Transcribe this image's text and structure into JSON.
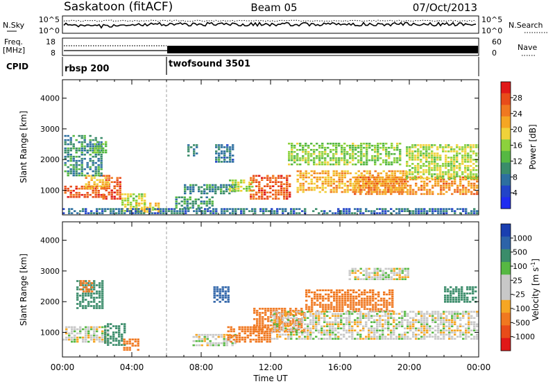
{
  "header": {
    "station": "Saskatoon (fitACF)",
    "beam": "Beam 05",
    "date": "07/Oct/2013"
  },
  "noise_panel": {
    "left_label": "N.Sky",
    "right_label": "N.Search",
    "left_ticks": [
      "10^5",
      "10^0"
    ],
    "right_ticks": [
      "10^5",
      "10^0"
    ]
  },
  "freq_panel": {
    "left_label_line1": "Freq.",
    "left_label_line2": "[MHz]",
    "right_label": "Nave",
    "left_ticks": [
      "18",
      "8"
    ],
    "right_ticks": [
      "60",
      "0"
    ]
  },
  "cpid_panel": {
    "label": "CPID",
    "modes": [
      {
        "name": "rbsp 200",
        "start_hour": 0
      },
      {
        "name": "twofsound 3501",
        "start_hour": 6
      }
    ]
  },
  "chart_data": [
    {
      "type": "heatmap",
      "title": "",
      "xlabel": "",
      "ylabel": "Slant Range [km]",
      "xlim": [
        0,
        24
      ],
      "ylim": [
        200,
        4600
      ],
      "y_ticks": [
        1000,
        2000,
        3000,
        4000
      ],
      "colorbar_label": "Power [dB]",
      "colorbar_ticks": [
        "4",
        "8",
        "12",
        "16",
        "20",
        "24",
        "28"
      ],
      "colorbar_colors": [
        "#1f2bf0",
        "#2244c8",
        "#2d6fa0",
        "#3a8c6a",
        "#56b843",
        "#8cd13c",
        "#f0d23a",
        "#f5a623",
        "#f07820",
        "#e84c1a",
        "#e01818"
      ],
      "regions": [
        {
          "x0": 0.1,
          "x1": 2.4,
          "y0": 800,
          "y1": 1150,
          "v": 26
        },
        {
          "x0": 2.3,
          "x1": 3.4,
          "y0": 750,
          "y1": 1500,
          "v": 26
        },
        {
          "x0": 1.3,
          "x1": 2.6,
          "y0": 1050,
          "y1": 1500,
          "v": 20
        },
        {
          "x0": 3.4,
          "x1": 4.8,
          "y0": 350,
          "y1": 900,
          "v": 16
        },
        {
          "x0": 4.2,
          "x1": 5.6,
          "y0": 300,
          "y1": 600,
          "v": 18
        },
        {
          "x0": 0.1,
          "x1": 2.2,
          "y0": 1500,
          "y1": 2800,
          "v": 9
        },
        {
          "x0": 1.8,
          "x1": 2.5,
          "y0": 2200,
          "y1": 2600,
          "v": 14
        },
        {
          "x0": 6.5,
          "x1": 8.6,
          "y0": 400,
          "y1": 800,
          "v": 10
        },
        {
          "x0": 7.0,
          "x1": 10.0,
          "y0": 900,
          "y1": 1200,
          "v": 9
        },
        {
          "x0": 8.8,
          "x1": 9.8,
          "y0": 1950,
          "y1": 2500,
          "v": 8
        },
        {
          "x0": 7.2,
          "x1": 7.8,
          "y0": 2100,
          "y1": 2500,
          "v": 8
        },
        {
          "x0": 9.6,
          "x1": 11.0,
          "y0": 950,
          "y1": 1350,
          "v": 16
        },
        {
          "x0": 10.8,
          "x1": 13.2,
          "y0": 700,
          "y1": 1500,
          "v": 25
        },
        {
          "x0": 13.0,
          "x1": 19.5,
          "y0": 1850,
          "y1": 2550,
          "v": 14
        },
        {
          "x0": 13.5,
          "x1": 19.8,
          "y0": 950,
          "y1": 1650,
          "v": 20
        },
        {
          "x0": 16.8,
          "x1": 24,
          "y0": 900,
          "y1": 1450,
          "v": 22
        },
        {
          "x0": 19.8,
          "x1": 24,
          "y0": 1350,
          "y1": 2500,
          "v": 16
        },
        {
          "x0": 0,
          "x1": 24,
          "y0": 230,
          "y1": 420,
          "v": 7
        }
      ]
    },
    {
      "type": "heatmap",
      "title": "",
      "xlabel": "Time UT",
      "ylabel": "Slant Range [km]",
      "xlim": [
        0,
        24
      ],
      "ylim": [
        200,
        4600
      ],
      "x_ticks": [
        "00:00",
        "04:00",
        "08:00",
        "12:00",
        "16:00",
        "20:00",
        "00:00"
      ],
      "y_ticks": [
        1000,
        2000,
        3000,
        4000
      ],
      "colorbar_label": "Velocity [m s^-1]",
      "colorbar_label_base": "Velocity [m s",
      "colorbar_label_sup": "-1",
      "colorbar_label_end": "]",
      "colorbar_ticks": [
        "1000",
        "500",
        "100",
        "25",
        "-25",
        "-100",
        "-500",
        "-1000"
      ],
      "colorbar_colors": [
        "#1a3fb0",
        "#2d63a8",
        "#3a8c6a",
        "#56b843",
        "#c8c8c8",
        "#c8c8c8",
        "#f5a623",
        "#f07820",
        "#e84c1a",
        "#e01818"
      ],
      "regions": [
        {
          "x0": 0,
          "x1": 2.6,
          "y0": 700,
          "y1": 1200,
          "v": 0
        },
        {
          "x0": 2.4,
          "x1": 3.6,
          "y0": 600,
          "y1": 1300,
          "v": 150
        },
        {
          "x0": 3.5,
          "x1": 4.4,
          "y0": 400,
          "y1": 800,
          "v": -150
        },
        {
          "x0": 0.8,
          "x1": 2.3,
          "y0": 1800,
          "y1": 2700,
          "v": 200
        },
        {
          "x0": 1.0,
          "x1": 1.8,
          "y0": 2350,
          "y1": 2700,
          "v": -200
        },
        {
          "x0": 7.5,
          "x1": 10.0,
          "y0": 550,
          "y1": 950,
          "v": 0
        },
        {
          "x0": 9.5,
          "x1": 12.0,
          "y0": 700,
          "y1": 1200,
          "v": -200
        },
        {
          "x0": 11.0,
          "x1": 14.0,
          "y0": 1050,
          "y1": 1800,
          "v": -250
        },
        {
          "x0": 14.0,
          "x1": 19.0,
          "y0": 1700,
          "y1": 2400,
          "v": -200
        },
        {
          "x0": 12.0,
          "x1": 24,
          "y0": 800,
          "y1": 1700,
          "v": 0
        },
        {
          "x0": 16.5,
          "x1": 20.0,
          "y0": 2700,
          "y1": 3100,
          "v": 0
        },
        {
          "x0": 8.7,
          "x1": 9.6,
          "y0": 2000,
          "y1": 2500,
          "v": 400
        },
        {
          "x0": 22.0,
          "x1": 23.8,
          "y0": 2000,
          "y1": 2500,
          "v": 150
        }
      ]
    }
  ]
}
